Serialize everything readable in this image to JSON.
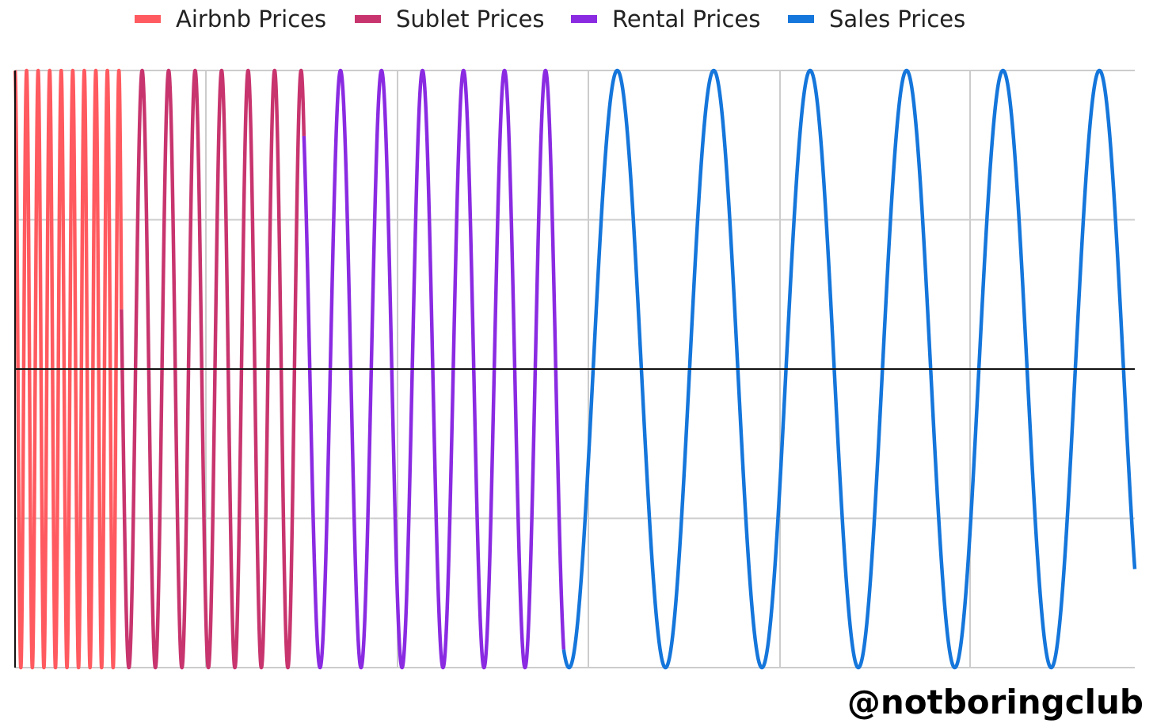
{
  "chart_data": {
    "type": "line",
    "title": "",
    "xlabel": "",
    "ylabel": "",
    "xlim": [
      0,
      1000
    ],
    "ylim": [
      -1,
      1
    ],
    "grid": true,
    "legend_placement": "top-center",
    "series": [
      {
        "name": "Airbnb Prices",
        "color": "#FF5A5F",
        "x_range": [
          0,
          95
        ],
        "cycles": 9,
        "start_value": 1,
        "end_value": 0.2
      },
      {
        "name": "Sublet Prices",
        "color": "#C8356E",
        "x_range": [
          95,
          258
        ],
        "cycles": 7,
        "start_value": 0.2,
        "end_value": 0.78
      },
      {
        "name": "Rental Prices",
        "color": "#8A2BE2",
        "x_range": [
          258,
          490
        ],
        "cycles": 6,
        "start_value": 0.78,
        "end_value": -0.94
      },
      {
        "name": "Sales Prices",
        "color": "#1576DB",
        "x_range": [
          490,
          1000
        ],
        "cycles": 6.0,
        "start_value": -0.94,
        "end_value": -0.67
      }
    ]
  },
  "watermark": "@notboringclub"
}
